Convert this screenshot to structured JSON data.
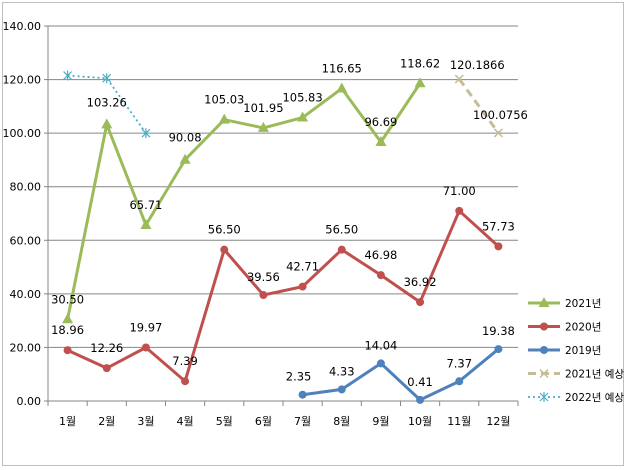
{
  "chart_data": {
    "type": "line",
    "categories": [
      "1월",
      "2월",
      "3월",
      "4월",
      "5월",
      "6월",
      "7월",
      "8월",
      "9월",
      "10월",
      "11월",
      "12월"
    ],
    "ylim": [
      0,
      140
    ],
    "yticks": [
      "0.00",
      "20.00",
      "40.00",
      "60.00",
      "80.00",
      "100.00",
      "120.00",
      "140.00"
    ],
    "grid": true,
    "legend_position": "right",
    "series": [
      {
        "name": "2021년",
        "color": "#9bbb59",
        "marker": "triangle",
        "dash": "solid",
        "values": [
          30.5,
          103.26,
          65.71,
          90.08,
          105.03,
          101.95,
          105.83,
          116.65,
          96.69,
          118.62,
          null,
          null
        ],
        "labels": [
          "30.50",
          "103.26",
          "65.71",
          "90.08",
          "105.03",
          "101.95",
          "105.83",
          "116.65",
          "96.69",
          "118.62",
          null,
          null
        ]
      },
      {
        "name": "2020년",
        "color": "#c0504d",
        "marker": "circle",
        "dash": "solid",
        "values": [
          18.96,
          12.26,
          19.97,
          7.39,
          56.5,
          39.56,
          42.71,
          56.5,
          46.98,
          36.92,
          71.0,
          57.73
        ],
        "labels": [
          "18.96",
          "12.26",
          "19.97",
          "7.39",
          "56.50",
          "39.56",
          "42.71",
          "56.50",
          "46.98",
          "36.92",
          "71.00",
          "57.73"
        ]
      },
      {
        "name": "2019년",
        "color": "#4f81bd",
        "marker": "circle",
        "dash": "solid",
        "values": [
          null,
          null,
          null,
          null,
          null,
          null,
          2.35,
          4.33,
          14.04,
          0.41,
          7.37,
          19.38
        ],
        "labels": [
          null,
          null,
          null,
          null,
          null,
          null,
          "2.35",
          "4.33",
          "14.04",
          "0.41",
          "7.37",
          "19.38"
        ]
      },
      {
        "name": "2021년 예상",
        "color": "#c4bd97",
        "marker": "x",
        "dash": "dash",
        "values": [
          null,
          null,
          null,
          null,
          null,
          null,
          null,
          null,
          null,
          null,
          120.1866,
          100.0756
        ],
        "labels": [
          null,
          null,
          null,
          null,
          null,
          null,
          null,
          null,
          null,
          null,
          "120.1866",
          "100.0756"
        ]
      },
      {
        "name": "2022년 예상",
        "color": "#4bacc6",
        "marker": "star",
        "dash": "dot",
        "values": [
          121.5,
          120.5,
          100.0,
          null,
          null,
          null,
          null,
          null,
          null,
          null,
          null,
          null
        ],
        "labels": [
          null,
          null,
          null,
          null,
          null,
          null,
          null,
          null,
          null,
          null,
          null,
          null
        ]
      }
    ]
  }
}
